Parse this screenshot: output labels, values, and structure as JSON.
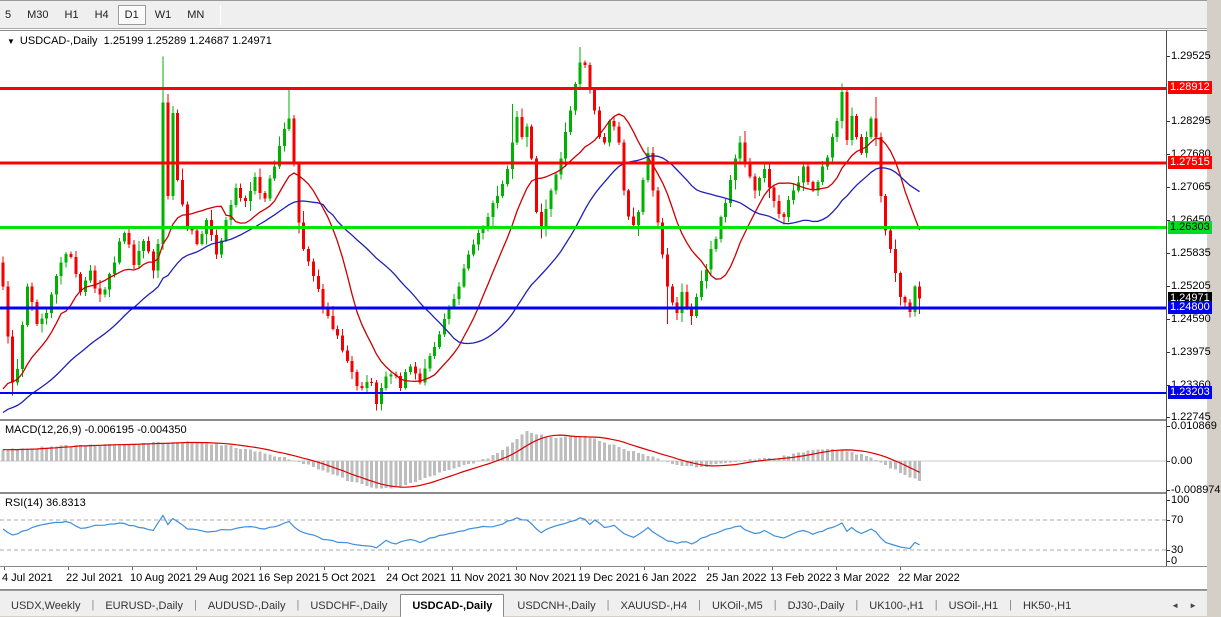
{
  "toolbar": {
    "timeframes": [
      "5",
      "M30",
      "H1",
      "H4",
      "D1",
      "W1",
      "MN"
    ],
    "active_timeframe": "D1"
  },
  "chart": {
    "dropdown_icon": "▼",
    "title_symbol": "USDCAD-,Daily",
    "title_ohlc": "1.25199 1.25289 1.24687 1.24971"
  },
  "indicators": {
    "macd_label": "MACD(12,26,9) -0.006195 -0.004350",
    "rsi_label": "RSI(14) 36.8313",
    "macd_axis_ticks": [
      {
        "text": "0.010869",
        "value": 0.010869
      },
      {
        "text": "0.00",
        "value": 0.0
      },
      {
        "text": "-0.008974",
        "value": -0.008974
      }
    ],
    "rsi_axis_ticks": [
      {
        "text": "100",
        "value": 100
      },
      {
        "text": "70",
        "value": 70
      },
      {
        "text": "30",
        "value": 30
      },
      {
        "text": "0",
        "value": 0
      }
    ]
  },
  "price_axis": {
    "ticks": [
      "1.29525",
      "1.28295",
      "1.27680",
      "1.27065",
      "1.26450",
      "1.25835",
      "1.25205",
      "1.24590",
      "1.23975",
      "1.23360",
      "1.22745"
    ],
    "badges": [
      {
        "text": "1.28912",
        "price": 1.28912,
        "bg": "#ff0000",
        "fg": "#ffffff"
      },
      {
        "text": "1.27515",
        "price": 1.27515,
        "bg": "#ff0000",
        "fg": "#ffffff"
      },
      {
        "text": "1.26303",
        "price": 1.26303,
        "bg": "#00dd22",
        "fg": "#000000"
      },
      {
        "text": "1.24971",
        "price": 1.24971,
        "bg": "#000000",
        "fg": "#ffffff"
      },
      {
        "text": "1.24800",
        "price": 1.248,
        "bg": "#0000ee",
        "fg": "#ffffff"
      },
      {
        "text": "1.23203",
        "price": 1.23203,
        "bg": "#0000ee",
        "fg": "#ffffff"
      }
    ]
  },
  "tabs": {
    "items": [
      "USDX,Weekly",
      "EURUSD-,Daily",
      "AUDUSD-,Daily",
      "USDCHF-,Daily",
      "USDCAD-,Daily",
      "USDCNH-,Daily",
      "XAUUSD-,H4",
      "UKOil-,M5",
      "DJ30-,Daily",
      "UK100-,H1",
      "USOil-,H1",
      "HK50-,H1"
    ],
    "active": "USDCAD-,Daily",
    "arrow_left": "◄",
    "arrow_right": "►"
  },
  "chart_data": {
    "type": "candlestick",
    "symbol": "USDCAD",
    "timeframe": "Daily",
    "x_labels": [
      "4 Jul 2021",
      "22 Jul 2021",
      "10 Aug 2021",
      "29 Aug 2021",
      "16 Sep 2021",
      "5 Oct 2021",
      "24 Oct 2021",
      "11 Nov 2021",
      "30 Nov 2021",
      "19 Dec 2021",
      "6 Jan 2022",
      "25 Jan 2022",
      "13 Feb 2022",
      "3 Mar 2022",
      "22 Mar 2022"
    ],
    "price_range": {
      "top": 1.2999,
      "bottom": 1.22715
    },
    "candle_count": 190,
    "first_open": 1.2565,
    "render_seed": 13,
    "close_anchors": [
      [
        0,
        1.252
      ],
      [
        2,
        1.234
      ],
      [
        3,
        1.2365
      ],
      [
        5,
        1.252
      ],
      [
        7,
        1.245
      ],
      [
        9,
        1.247
      ],
      [
        12,
        1.2565
      ],
      [
        14,
        1.2575
      ],
      [
        16,
        1.251
      ],
      [
        18,
        1.255
      ],
      [
        20,
        1.2505
      ],
      [
        23,
        1.2565
      ],
      [
        25,
        1.262
      ],
      [
        27,
        1.256
      ],
      [
        29,
        1.2605
      ],
      [
        31,
        1.255
      ],
      [
        32,
        1.26
      ],
      [
        33,
        1.2865
      ],
      [
        34,
        1.269
      ],
      [
        35,
        1.2845
      ],
      [
        36,
        1.272
      ],
      [
        38,
        1.263
      ],
      [
        40,
        1.26
      ],
      [
        42,
        1.2645
      ],
      [
        44,
        1.258
      ],
      [
        46,
        1.2645
      ],
      [
        48,
        1.2705
      ],
      [
        50,
        1.268
      ],
      [
        52,
        1.2725
      ],
      [
        54,
        1.2685
      ],
      [
        56,
        1.2745
      ],
      [
        58,
        1.2815
      ],
      [
        59,
        1.2835
      ],
      [
        60,
        1.275
      ],
      [
        61,
        1.264
      ],
      [
        62,
        1.259
      ],
      [
        64,
        1.254
      ],
      [
        66,
        1.248
      ],
      [
        68,
        1.244
      ],
      [
        70,
        1.24
      ],
      [
        72,
        1.236
      ],
      [
        74,
        1.233
      ],
      [
        76,
        1.234
      ],
      [
        77,
        1.23
      ],
      [
        78,
        1.233
      ],
      [
        80,
        1.2355
      ],
      [
        82,
        1.233
      ],
      [
        84,
        1.237
      ],
      [
        86,
        1.234
      ],
      [
        88,
        1.239
      ],
      [
        90,
        1.243
      ],
      [
        92,
        1.248
      ],
      [
        94,
        1.252
      ],
      [
        96,
        1.258
      ],
      [
        98,
        1.262
      ],
      [
        100,
        1.265
      ],
      [
        102,
        1.269
      ],
      [
        104,
        1.274
      ],
      [
        105,
        1.279
      ],
      [
        106,
        1.2838
      ],
      [
        107,
        1.28
      ],
      [
        108,
        1.282
      ],
      [
        109,
        1.276
      ],
      [
        110,
        1.266
      ],
      [
        111,
        1.2632
      ],
      [
        112,
        1.2665
      ],
      [
        113,
        1.27
      ],
      [
        114,
        1.273
      ],
      [
        115,
        1.276
      ],
      [
        116,
        1.281
      ],
      [
        117,
        1.285
      ],
      [
        118,
        1.29
      ],
      [
        119,
        1.294
      ],
      [
        120,
        1.2935
      ],
      [
        121,
        1.289
      ],
      [
        122,
        1.285
      ],
      [
        123,
        1.28
      ],
      [
        124,
        1.279
      ],
      [
        125,
        1.283
      ],
      [
        126,
        1.282
      ],
      [
        127,
        1.279
      ],
      [
        128,
        1.27
      ],
      [
        129,
        1.2651
      ],
      [
        130,
        1.2635
      ],
      [
        131,
        1.266
      ],
      [
        132,
        1.272
      ],
      [
        133,
        1.277
      ],
      [
        134,
        1.27
      ],
      [
        135,
        1.264
      ],
      [
        136,
        1.258
      ],
      [
        137,
        1.252
      ],
      [
        138,
        1.249
      ],
      [
        139,
        1.247
      ],
      [
        140,
        1.251
      ],
      [
        141,
        1.248
      ],
      [
        142,
        1.2465
      ],
      [
        143,
        1.25
      ],
      [
        144,
        1.253
      ],
      [
        146,
        1.259
      ],
      [
        148,
        1.265
      ],
      [
        150,
        1.272
      ],
      [
        151,
        1.276
      ],
      [
        152,
        1.279
      ],
      [
        153,
        1.275
      ],
      [
        155,
        1.27
      ],
      [
        157,
        1.274
      ],
      [
        159,
        1.268
      ],
      [
        161,
        1.265
      ],
      [
        163,
        1.27
      ],
      [
        165,
        1.2745
      ],
      [
        167,
        1.27
      ],
      [
        169,
        1.2745
      ],
      [
        171,
        1.28
      ],
      [
        172,
        1.283
      ],
      [
        173,
        1.2885
      ],
      [
        174,
        1.2795
      ],
      [
        175,
        1.284
      ],
      [
        176,
        1.28
      ],
      [
        177,
        1.277
      ],
      [
        178,
        1.28
      ],
      [
        179,
        1.2835
      ],
      [
        180,
        1.28
      ],
      [
        181,
        1.269
      ],
      [
        182,
        1.2625
      ],
      [
        183,
        1.259
      ],
      [
        184,
        1.2545
      ],
      [
        185,
        1.25
      ],
      [
        186,
        1.249
      ],
      [
        187,
        1.2472
      ],
      [
        188,
        1.25199
      ],
      [
        189,
        1.24971
      ]
    ],
    "wick_overrides": {
      "2": {
        "low": 1.2316
      },
      "33": {
        "high": 1.2951
      },
      "59": {
        "high": 1.289
      },
      "77": {
        "low": 1.2287
      },
      "105": {
        "high": 1.2862
      },
      "119": {
        "high": 1.2969
      },
      "137": {
        "low": 1.245
      },
      "142": {
        "low": 1.2448
      },
      "173": {
        "high": 1.2901
      },
      "180": {
        "high": 1.2875
      },
      "187": {
        "low": 1.2462
      },
      "189": {
        "high": 1.25289,
        "low": 1.24687
      }
    },
    "prehistory": {
      "start": 1.22,
      "end": 1.233,
      "count": 40
    },
    "moving_averages": [
      {
        "period": 13,
        "color": "#cc0000"
      },
      {
        "period": 34,
        "color": "#2020b8"
      }
    ],
    "hlines": [
      {
        "price": 1.28912,
        "color": "#ff0000",
        "width": 3
      },
      {
        "price": 1.27515,
        "color": "#ff0000",
        "width": 3
      },
      {
        "price": 1.26303,
        "color": "#00e600",
        "width": 3
      },
      {
        "price": 1.248,
        "color": "#0000ff",
        "width": 3
      },
      {
        "price": 1.23203,
        "color": "#0000ff",
        "width": 2
      }
    ],
    "candle_colors": {
      "up": "#00b200",
      "down": "#f40000"
    },
    "macd": {
      "range": {
        "top": 0.01242,
        "bottom": -0.00963
      },
      "bar_color": "#bdbdbd",
      "signal_color": "#dd0000",
      "signal_period": 9,
      "value_anchors": [
        [
          0,
          0.0035
        ],
        [
          10,
          0.0045
        ],
        [
          20,
          0.005
        ],
        [
          30,
          0.0055
        ],
        [
          38,
          0.006
        ],
        [
          44,
          0.0052
        ],
        [
          50,
          0.0038
        ],
        [
          55,
          0.002
        ],
        [
          60,
          0.0002
        ],
        [
          64,
          -0.0018
        ],
        [
          68,
          -0.0042
        ],
        [
          72,
          -0.0065
        ],
        [
          76,
          -0.0082
        ],
        [
          80,
          -0.0086
        ],
        [
          84,
          -0.0068
        ],
        [
          88,
          -0.0048
        ],
        [
          92,
          -0.0028
        ],
        [
          96,
          -0.001
        ],
        [
          100,
          0.0008
        ],
        [
          104,
          0.0045
        ],
        [
          108,
          0.0093
        ],
        [
          111,
          0.0082
        ],
        [
          114,
          0.0072
        ],
        [
          117,
          0.0076
        ],
        [
          120,
          0.0078
        ],
        [
          124,
          0.0058
        ],
        [
          128,
          0.0038
        ],
        [
          132,
          0.0022
        ],
        [
          136,
          0.0002
        ],
        [
          140,
          -0.0016
        ],
        [
          144,
          -0.0019
        ],
        [
          148,
          -0.0008
        ],
        [
          152,
          0.0002
        ],
        [
          156,
          0.0008
        ],
        [
          160,
          0.001
        ],
        [
          164,
          0.0026
        ],
        [
          168,
          0.0035
        ],
        [
          171,
          0.0038
        ],
        [
          174,
          0.003
        ],
        [
          178,
          0.0016
        ],
        [
          182,
          -0.0012
        ],
        [
          185,
          -0.0038
        ],
        [
          189,
          -0.0062
        ]
      ],
      "final_values": {
        "macd": -0.006195,
        "signal": -0.00435
      }
    },
    "rsi": {
      "levels": [
        70,
        30
      ],
      "line_color": "#3e8ede",
      "level_color": "#a8a8a8",
      "value_anchors": [
        [
          0,
          58
        ],
        [
          2,
          50
        ],
        [
          6,
          60
        ],
        [
          10,
          66
        ],
        [
          13,
          68
        ],
        [
          16,
          59
        ],
        [
          20,
          63
        ],
        [
          24,
          66
        ],
        [
          28,
          60
        ],
        [
          31,
          56
        ],
        [
          33,
          76
        ],
        [
          34,
          64
        ],
        [
          35,
          72
        ],
        [
          38,
          58
        ],
        [
          42,
          54
        ],
        [
          46,
          57
        ],
        [
          50,
          61
        ],
        [
          54,
          58
        ],
        [
          58,
          66
        ],
        [
          59,
          68
        ],
        [
          61,
          56
        ],
        [
          64,
          50
        ],
        [
          66,
          44
        ],
        [
          70,
          40
        ],
        [
          74,
          36
        ],
        [
          77,
          33
        ],
        [
          79,
          43
        ],
        [
          81,
          38
        ],
        [
          84,
          44
        ],
        [
          86,
          40
        ],
        [
          88,
          46
        ],
        [
          92,
          52
        ],
        [
          94,
          55
        ],
        [
          96,
          58
        ],
        [
          98,
          60
        ],
        [
          100,
          61
        ],
        [
          102,
          63
        ],
        [
          105,
          70
        ],
        [
          106,
          73
        ],
        [
          108,
          70
        ],
        [
          110,
          58
        ],
        [
          111,
          53
        ],
        [
          113,
          60
        ],
        [
          115,
          64
        ],
        [
          117,
          68
        ],
        [
          119,
          73
        ],
        [
          120,
          71
        ],
        [
          121,
          64
        ],
        [
          122,
          70
        ],
        [
          124,
          60
        ],
        [
          126,
          63
        ],
        [
          128,
          52
        ],
        [
          130,
          47
        ],
        [
          132,
          55
        ],
        [
          133,
          60
        ],
        [
          135,
          50
        ],
        [
          137,
          42
        ],
        [
          139,
          39
        ],
        [
          141,
          41
        ],
        [
          142,
          38
        ],
        [
          144,
          46
        ],
        [
          146,
          51
        ],
        [
          148,
          55
        ],
        [
          150,
          59
        ],
        [
          152,
          62
        ],
        [
          153,
          57
        ],
        [
          155,
          52
        ],
        [
          157,
          56
        ],
        [
          159,
          49
        ],
        [
          161,
          46
        ],
        [
          163,
          52
        ],
        [
          165,
          56
        ],
        [
          167,
          51
        ],
        [
          169,
          55
        ],
        [
          171,
          60
        ],
        [
          173,
          66
        ],
        [
          174,
          55
        ],
        [
          175,
          60
        ],
        [
          176,
          55
        ],
        [
          177,
          52
        ],
        [
          178,
          55
        ],
        [
          179,
          58
        ],
        [
          180,
          54
        ],
        [
          181,
          46
        ],
        [
          182,
          40
        ],
        [
          183,
          38
        ],
        [
          184,
          36
        ],
        [
          185,
          34
        ],
        [
          186,
          33
        ],
        [
          187,
          32
        ],
        [
          188,
          40
        ],
        [
          189,
          36.8313
        ]
      ],
      "final_value": 36.8313
    }
  }
}
